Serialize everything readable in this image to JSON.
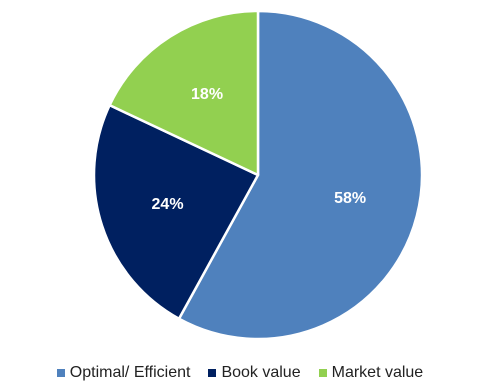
{
  "chart_data": {
    "type": "pie",
    "title": "",
    "legend_position": "bottom",
    "start_angle_deg": 0,
    "direction": "clockwise",
    "slices": [
      {
        "label": "Optimal/ Efficient",
        "value": 58,
        "display": "58%",
        "color": "#4f81bd"
      },
      {
        "label": "Book value",
        "value": 24,
        "display": "24%",
        "color": "#002060"
      },
      {
        "label": "Market value",
        "value": 18,
        "display": "18%",
        "color": "#92d050"
      }
    ]
  }
}
